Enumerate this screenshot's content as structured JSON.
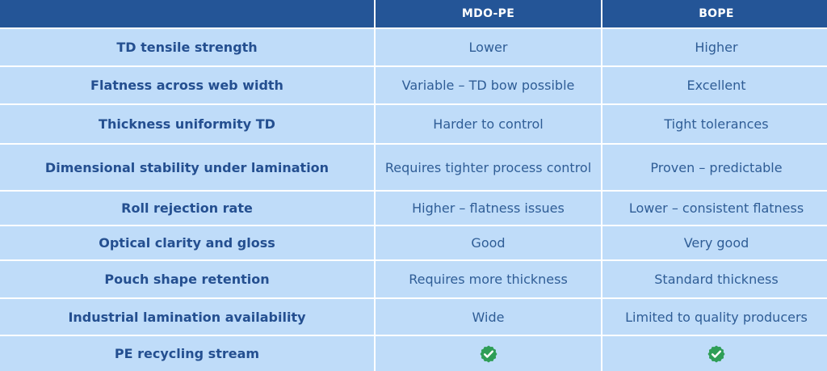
{
  "header": {
    "corner": "",
    "col_mdo": "MDO-PE",
    "col_bope": "BOPE"
  },
  "rows": [
    {
      "label": "TD tensile strength",
      "mdo": "Lower",
      "bope": "Higher"
    },
    {
      "label": "Flatness across web width",
      "mdo": "Variable – TD bow possible",
      "bope": "Excellent"
    },
    {
      "label": "Thickness uniformity TD",
      "mdo": "Harder to control",
      "bope": "Tight tolerances"
    },
    {
      "label": "Dimensional stability under lamination",
      "mdo": "Requires tighter process control",
      "bope": "Proven – predictable"
    },
    {
      "label": "Roll rejection rate",
      "mdo": "Higher – flatness issues",
      "bope": "Lower – consistent flatness"
    },
    {
      "label": "Optical clarity and gloss",
      "mdo": "Good",
      "bope": "Very good"
    },
    {
      "label": "Pouch shape retention",
      "mdo": "Requires more thickness",
      "bope": "Standard thickness"
    },
    {
      "label": "Industrial lamination availability",
      "mdo": "Wide",
      "bope": "Limited to quality producers"
    },
    {
      "label": "PE recycling stream",
      "mdo_icon": "check-badge-icon",
      "bope_icon": "check-badge-icon"
    }
  ],
  "colors": {
    "header_bg": "#245597",
    "cell_bg": "#bfdcf9",
    "label_text": "#244f90",
    "value_text": "#2f5d96",
    "check_green": "#2f9e57"
  }
}
